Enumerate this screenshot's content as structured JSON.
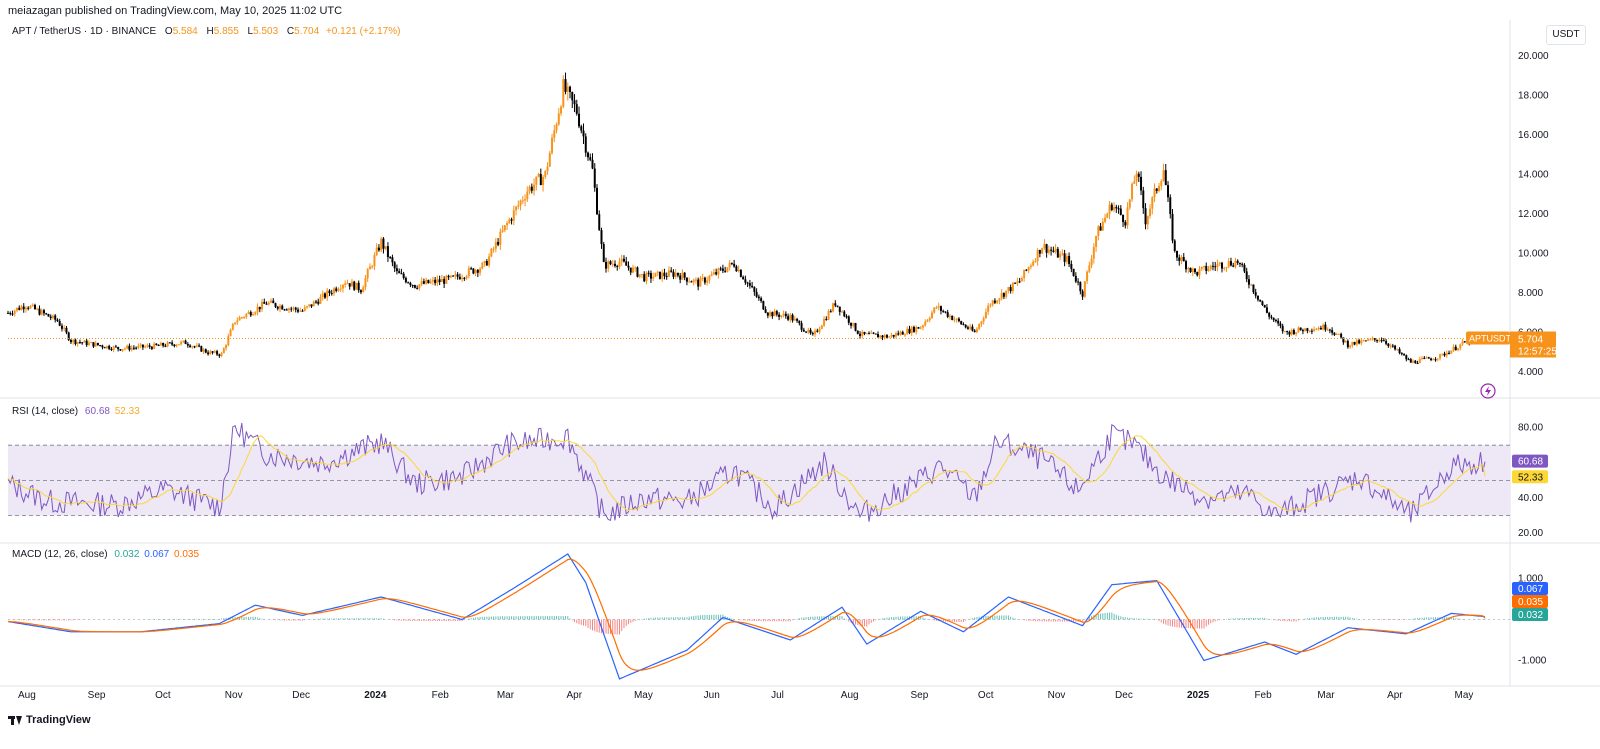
{
  "publish_line": "meiazagan published on TradingView.com, May 10, 2025 11:02 UTC",
  "symbol_legend": {
    "title": "APT / TetherUS · 1D · BINANCE",
    "o_label": "O",
    "o": "5.584",
    "h_label": "H",
    "h": "5.855",
    "l_label": "L",
    "l": "5.503",
    "c_label": "C",
    "c": "5.704",
    "change": "+0.121 (+2.17%)"
  },
  "currency_button": "USDT",
  "price_tag": {
    "symbol": "APTUSDT",
    "price": "5.704",
    "countdown": "12:57:25"
  },
  "rsi_legend": {
    "title": "RSI (14, close)",
    "rsi": "60.68",
    "ma": "52.33"
  },
  "macd_legend": {
    "title": "MACD (12, 26, close)",
    "hist": "0.032",
    "macd": "0.067",
    "signal": "0.035"
  },
  "rsi_tags": {
    "rsi": "60.68",
    "ma": "52.33"
  },
  "macd_tags": {
    "macd": "0.067",
    "signal": "0.035",
    "hist": "0.032"
  },
  "footer": "TradingView",
  "colors": {
    "up": "#f7931a",
    "down": "#000000",
    "rsi_line": "#7e57c2",
    "rsi_ma": "#fdd835",
    "macd_line": "#2962ff",
    "signal_line": "#ff6d00",
    "hist_up": "#26a69a",
    "hist_down": "#ef5350",
    "rsi_band": "#ede7f6",
    "price_line": "#f7931a"
  },
  "chart_data": [
    {
      "type": "candlestick",
      "title": "APT / TetherUS · 1D · BINANCE",
      "y_ticks": [
        "4.000",
        "6.000",
        "8.000",
        "10.000",
        "12.000",
        "14.000",
        "16.000",
        "18.000",
        "20.000"
      ],
      "ylim": [
        3.2,
        20.6
      ],
      "x_ticks": [
        "Aug",
        "Sep",
        "Oct",
        "Nov",
        "Dec",
        "2024",
        "Feb",
        "Mar",
        "Apr",
        "May",
        "Jun",
        "Jul",
        "Aug",
        "Sep",
        "Oct",
        "Nov",
        "Dec",
        "2025",
        "Feb",
        "Mar",
        "Apr",
        "May"
      ],
      "last_price": 5.704,
      "close_path": [
        [
          "2023-07-23",
          7.0
        ],
        [
          "2023-07-31",
          7.4
        ],
        [
          "2023-08-14",
          6.6
        ],
        [
          "2023-08-20",
          5.6
        ],
        [
          "2023-09-10",
          5.2
        ],
        [
          "2023-09-25",
          5.3
        ],
        [
          "2023-10-10",
          5.5
        ],
        [
          "2023-10-20",
          5.0
        ],
        [
          "2023-10-26",
          4.9
        ],
        [
          "2023-11-01",
          6.6
        ],
        [
          "2023-11-15",
          7.5
        ],
        [
          "2023-12-01",
          7.1
        ],
        [
          "2023-12-10",
          7.8
        ],
        [
          "2023-12-20",
          8.6
        ],
        [
          "2023-12-27",
          8.2
        ],
        [
          "2024-01-05",
          10.6
        ],
        [
          "2024-01-12",
          9.0
        ],
        [
          "2024-01-20",
          8.4
        ],
        [
          "2024-02-05",
          8.7
        ],
        [
          "2024-02-20",
          9.4
        ],
        [
          "2024-03-01",
          11.5
        ],
        [
          "2024-03-10",
          13.2
        ],
        [
          "2024-03-18",
          14.0
        ],
        [
          "2024-03-26",
          18.4
        ],
        [
          "2024-04-01",
          17.2
        ],
        [
          "2024-04-08",
          14.2
        ],
        [
          "2024-04-13",
          9.4
        ],
        [
          "2024-04-20",
          9.6
        ],
        [
          "2024-05-01",
          8.8
        ],
        [
          "2024-05-15",
          9.0
        ],
        [
          "2024-05-25",
          8.5
        ],
        [
          "2024-06-10",
          9.5
        ],
        [
          "2024-06-25",
          7.0
        ],
        [
          "2024-07-05",
          6.8
        ],
        [
          "2024-07-15",
          5.8
        ],
        [
          "2024-07-25",
          7.5
        ],
        [
          "2024-08-05",
          5.9
        ],
        [
          "2024-08-18",
          5.8
        ],
        [
          "2024-09-01",
          6.3
        ],
        [
          "2024-09-08",
          7.3
        ],
        [
          "2024-09-25",
          6.0
        ],
        [
          "2024-10-02",
          7.5
        ],
        [
          "2024-10-15",
          8.6
        ],
        [
          "2024-10-25",
          10.4
        ],
        [
          "2024-11-05",
          9.7
        ],
        [
          "2024-11-12",
          8.0
        ],
        [
          "2024-11-18",
          10.9
        ],
        [
          "2024-11-25",
          12.5
        ],
        [
          "2024-12-01",
          11.7
        ],
        [
          "2024-12-06",
          14.2
        ],
        [
          "2024-12-10",
          11.7
        ],
        [
          "2024-12-18",
          14.3
        ],
        [
          "2024-12-23",
          10.0
        ],
        [
          "2025-01-01",
          9.0
        ],
        [
          "2025-01-10",
          9.4
        ],
        [
          "2025-01-20",
          9.6
        ],
        [
          "2025-02-02",
          7.0
        ],
        [
          "2025-02-10",
          6.0
        ],
        [
          "2025-02-20",
          6.2
        ],
        [
          "2025-03-01",
          6.3
        ],
        [
          "2025-03-10",
          5.4
        ],
        [
          "2025-03-25",
          5.7
        ],
        [
          "2025-04-07",
          4.5
        ],
        [
          "2025-04-20",
          4.8
        ],
        [
          "2025-05-01",
          5.5
        ],
        [
          "2025-05-10",
          5.7
        ]
      ]
    },
    {
      "type": "line",
      "title": "RSI (14, close)",
      "y_ticks": [
        "20.00",
        "40.00",
        "80.00"
      ],
      "ylim": [
        15,
        90
      ],
      "band": [
        30,
        70
      ],
      "series": [
        {
          "name": "RSI",
          "last": 60.68
        },
        {
          "name": "MA",
          "last": 52.33
        }
      ],
      "rsi_path": [
        [
          "2023-07-23",
          48
        ],
        [
          "2023-08-10",
          38
        ],
        [
          "2023-09-10",
          36
        ],
        [
          "2023-10-01",
          45
        ],
        [
          "2023-10-25",
          35
        ],
        [
          "2023-11-01",
          80
        ],
        [
          "2023-11-15",
          65
        ],
        [
          "2023-12-10",
          60
        ],
        [
          "2024-01-05",
          72
        ],
        [
          "2024-01-20",
          48
        ],
        [
          "2024-02-10",
          52
        ],
        [
          "2024-03-01",
          70
        ],
        [
          "2024-03-28",
          75
        ],
        [
          "2024-04-13",
          30
        ],
        [
          "2024-05-01",
          40
        ],
        [
          "2024-05-20",
          38
        ],
        [
          "2024-06-10",
          56
        ],
        [
          "2024-06-28",
          34
        ],
        [
          "2024-07-20",
          60
        ],
        [
          "2024-08-05",
          30
        ],
        [
          "2024-08-25",
          45
        ],
        [
          "2024-09-10",
          58
        ],
        [
          "2024-09-25",
          40
        ],
        [
          "2024-10-05",
          72
        ],
        [
          "2024-10-25",
          62
        ],
        [
          "2024-11-10",
          44
        ],
        [
          "2024-11-25",
          76
        ],
        [
          "2024-12-05",
          70
        ],
        [
          "2024-12-18",
          52
        ],
        [
          "2025-01-05",
          40
        ],
        [
          "2025-01-25",
          42
        ],
        [
          "2025-02-05",
          30
        ],
        [
          "2025-02-25",
          42
        ],
        [
          "2025-03-15",
          52
        ],
        [
          "2025-04-07",
          30
        ],
        [
          "2025-04-25",
          58
        ],
        [
          "2025-05-10",
          60.7
        ]
      ]
    },
    {
      "type": "line",
      "title": "MACD (12, 26, close)",
      "y_ticks": [
        "-1.000",
        "1.000"
      ],
      "ylim": [
        -1.55,
        1.55
      ],
      "series": [
        {
          "name": "MACD",
          "last": 0.067
        },
        {
          "name": "Signal",
          "last": 0.035
        },
        {
          "name": "Histogram",
          "last": 0.032
        }
      ],
      "macd_path": [
        [
          "2023-07-23",
          -0.05
        ],
        [
          "2023-08-20",
          -0.3
        ],
        [
          "2023-09-20",
          -0.3
        ],
        [
          "2023-10-25",
          -0.1
        ],
        [
          "2023-11-10",
          0.35
        ],
        [
          "2023-12-01",
          0.1
        ],
        [
          "2024-01-05",
          0.55
        ],
        [
          "2024-02-10",
          0.0
        ],
        [
          "2024-03-05",
          0.8
        ],
        [
          "2024-03-28",
          1.6
        ],
        [
          "2024-04-05",
          0.9
        ],
        [
          "2024-04-20",
          -1.45
        ],
        [
          "2024-05-20",
          -0.75
        ],
        [
          "2024-06-05",
          0.05
        ],
        [
          "2024-07-05",
          -0.5
        ],
        [
          "2024-07-28",
          0.3
        ],
        [
          "2024-08-08",
          -0.6
        ],
        [
          "2024-09-01",
          0.2
        ],
        [
          "2024-09-20",
          -0.3
        ],
        [
          "2024-10-10",
          0.55
        ],
        [
          "2024-11-12",
          -0.15
        ],
        [
          "2024-11-25",
          0.85
        ],
        [
          "2024-12-15",
          0.95
        ],
        [
          "2025-01-05",
          -1.0
        ],
        [
          "2025-02-01",
          -0.55
        ],
        [
          "2025-02-15",
          -0.85
        ],
        [
          "2025-03-10",
          -0.2
        ],
        [
          "2025-04-05",
          -0.35
        ],
        [
          "2025-04-25",
          0.15
        ],
        [
          "2025-05-10",
          0.07
        ]
      ]
    }
  ]
}
